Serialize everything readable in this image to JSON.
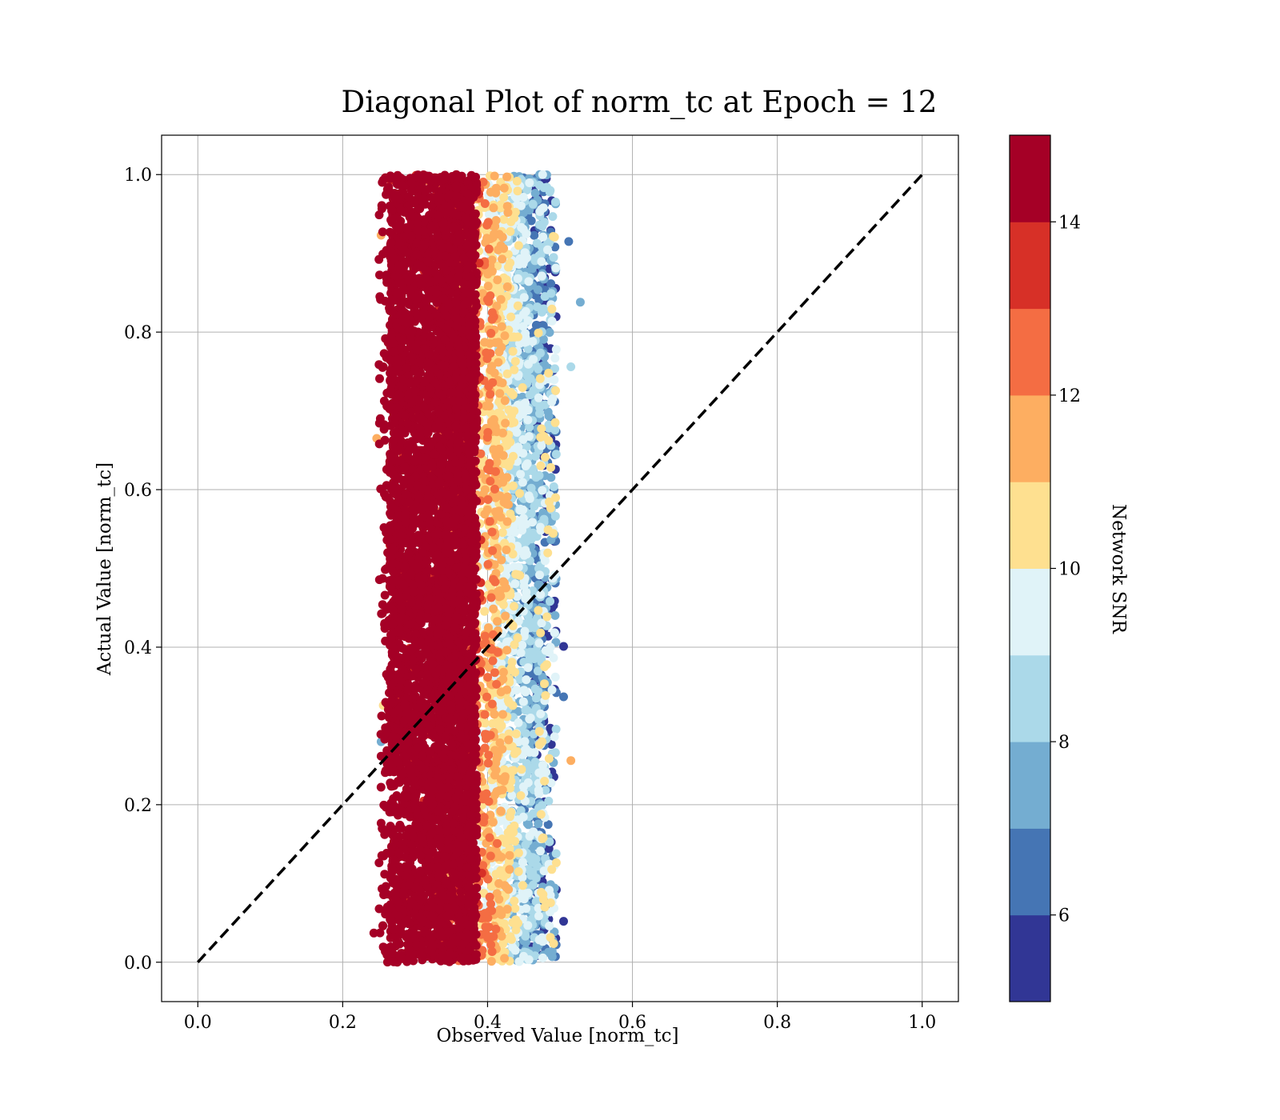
{
  "chart_data": {
    "type": "scatter",
    "title": "Diagonal Plot of norm_tc at Epoch = 12",
    "xlabel": "Observed Value [norm_tc]",
    "ylabel": "Actual Value [norm_tc]",
    "xlim": [
      -0.05,
      1.05
    ],
    "ylim": [
      -0.05,
      1.05
    ],
    "x_ticks": [
      "0.0",
      "0.2",
      "0.4",
      "0.6",
      "0.8",
      "1.0"
    ],
    "y_ticks": [
      "0.0",
      "0.2",
      "0.4",
      "0.6",
      "0.8",
      "1.0"
    ],
    "grid": true,
    "reference_line": {
      "style": "dashed",
      "color": "#000000",
      "from": [
        0.0,
        0.0
      ],
      "to": [
        1.0,
        1.0
      ]
    },
    "point_cloud": {
      "x_range": [
        0.25,
        0.5
      ],
      "y_range": [
        0.0,
        1.0
      ],
      "x_mode": 0.32,
      "description_of_coloring": "high SNR concentrated near x=0.27-0.38, lower SNR toward x=0.45-0.50"
    },
    "outliers": [
      {
        "x": 0.528,
        "y": 0.838,
        "snr": 7.5
      },
      {
        "x": 0.515,
        "y": 0.756,
        "snr": 8.5
      },
      {
        "x": 0.512,
        "y": 0.915,
        "snr": 6.6
      },
      {
        "x": 0.515,
        "y": 0.256,
        "snr": 11.5
      },
      {
        "x": 0.505,
        "y": 0.401,
        "snr": 5.5
      },
      {
        "x": 0.505,
        "y": 0.337,
        "snr": 6.5
      },
      {
        "x": 0.505,
        "y": 0.052,
        "snr": 5.5
      },
      {
        "x": 0.247,
        "y": 0.665,
        "snr": 11.5
      },
      {
        "x": 0.253,
        "y": 0.28,
        "snr": 7.5
      },
      {
        "x": 0.253,
        "y": 0.923,
        "snr": 11.5
      },
      {
        "x": 0.243,
        "y": 0.037,
        "snr": 15.0
      },
      {
        "x": 0.256,
        "y": 0.326,
        "snr": 10.5
      }
    ],
    "colorbar": {
      "label": "Network SNR",
      "min": 5,
      "max": 15,
      "ticks": [
        "6",
        "8",
        "10",
        "12",
        "14"
      ],
      "tick_values": [
        6,
        8,
        10,
        12,
        14
      ],
      "colors": [
        "#313695",
        "#4575b4",
        "#74add1",
        "#abd9e9",
        "#e0f3f8",
        "#fee090",
        "#fdae61",
        "#f46d43",
        "#d73027",
        "#a50026"
      ]
    }
  }
}
